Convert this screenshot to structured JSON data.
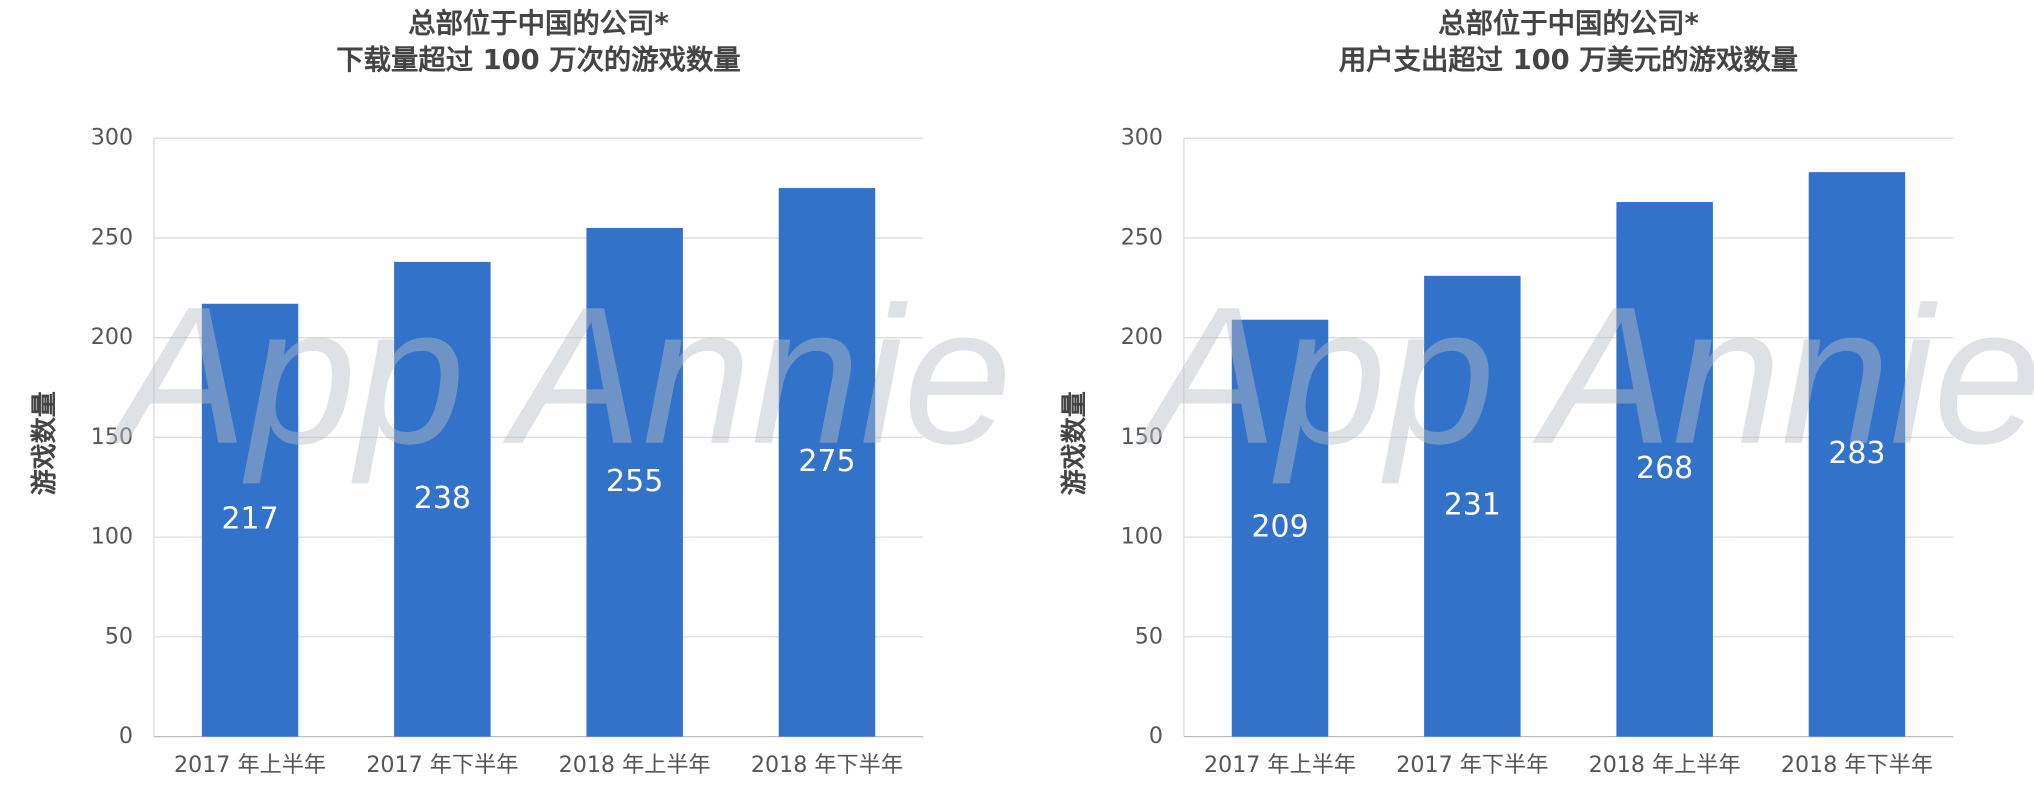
{
  "chart_data": [
    {
      "type": "bar",
      "title": "总部位于中国的公司*",
      "subtitle": "下载量超过 100 万次的游戏数量",
      "y_label": "游戏数量",
      "watermark": "App Annie",
      "categories": [
        "2017 年上半年",
        "2017 年下半年",
        "2018 年上半年",
        "2018 年下半年"
      ],
      "values": [
        217,
        238,
        255,
        275
      ],
      "color": "#3273c9",
      "ylim": [
        0,
        300
      ],
      "yticks": [
        0,
        50,
        100,
        150,
        200,
        250,
        300
      ],
      "grid": true
    },
    {
      "type": "bar",
      "title": "总部位于中国的公司*",
      "subtitle": "用户支出超过 100 万美元的游戏数量",
      "y_label": "游戏数量",
      "watermark": "App Annie",
      "categories": [
        "2017 年上半年",
        "2017 年下半年",
        "2018 年上半年",
        "2018 年下半年"
      ],
      "values": [
        209,
        231,
        268,
        283
      ],
      "color": "#3273c9",
      "ylim": [
        0,
        300
      ],
      "yticks": [
        0,
        50,
        100,
        150,
        200,
        250,
        300
      ],
      "grid": true
    }
  ]
}
